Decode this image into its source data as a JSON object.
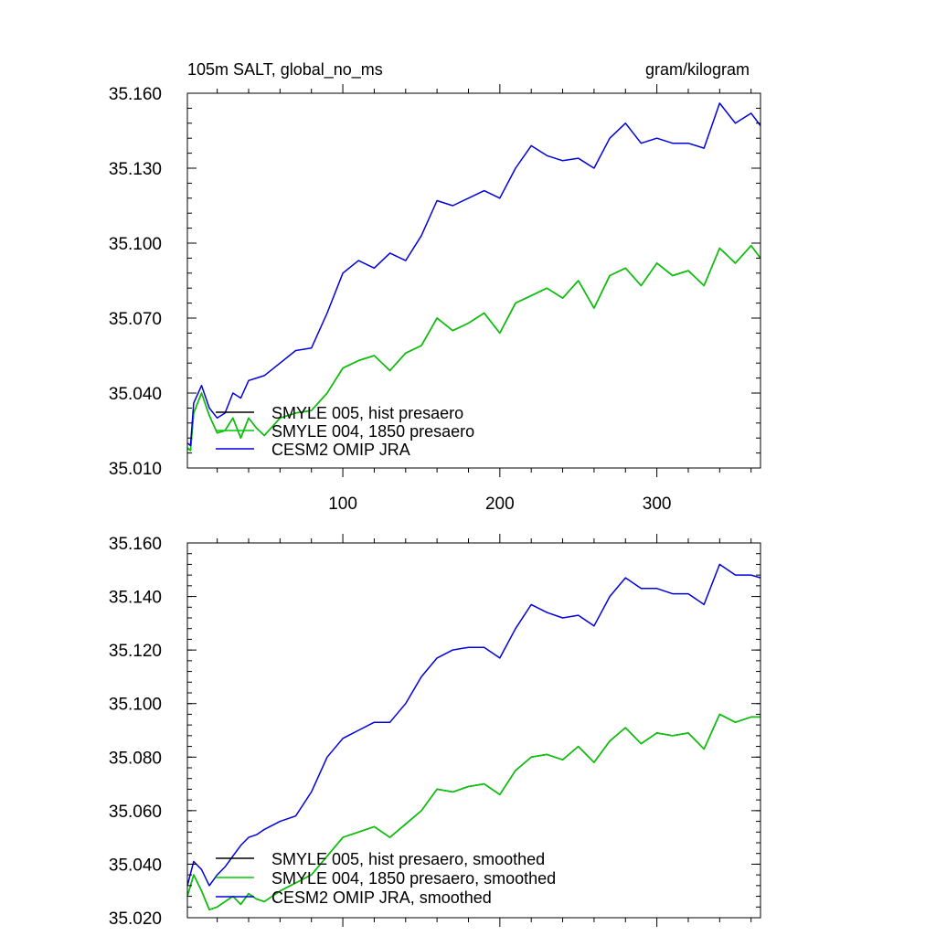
{
  "chart_data": [
    {
      "type": "line",
      "title": "105m SALT, global_no_ms",
      "units": "gram/kilogram",
      "xlim": [
        1,
        366
      ],
      "ylim": [
        35.01,
        35.16
      ],
      "x_ticks": [
        100,
        200,
        300
      ],
      "x_tick_labels": [
        "100",
        "200",
        "300"
      ],
      "y_ticks": [
        35.01,
        35.04,
        35.07,
        35.1,
        35.13,
        35.16
      ],
      "y_tick_labels": [
        "35.010",
        "35.040",
        "35.070",
        "35.100",
        "35.130",
        "35.160"
      ],
      "legend_position": "bottom-left",
      "series": [
        {
          "name": "SMYLE 005, hist presaero",
          "color": "#000000",
          "x": [
            1,
            3,
            5,
            10,
            15,
            20,
            25,
            30,
            35,
            40,
            45,
            50,
            60,
            70,
            80,
            90,
            100,
            110,
            120,
            130,
            140,
            150,
            160,
            170,
            180,
            190,
            200,
            210,
            220,
            230,
            240,
            250,
            260,
            270,
            280,
            290,
            300,
            310,
            320,
            330,
            340,
            350,
            360,
            366
          ],
          "y": [
            35.018,
            35.017,
            35.032,
            35.04,
            35.031,
            35.024,
            35.025,
            35.03,
            35.022,
            35.03,
            35.026,
            35.023,
            35.03,
            35.032,
            35.033,
            35.04,
            35.05,
            35.053,
            35.055,
            35.049,
            35.056,
            35.059,
            35.07,
            35.065,
            35.068,
            35.072,
            35.064,
            35.076,
            35.079,
            35.082,
            35.078,
            35.085,
            35.074,
            35.087,
            35.09,
            35.083,
            35.092,
            35.087,
            35.089,
            35.083,
            35.098,
            35.092,
            35.099,
            35.094
          ]
        },
        {
          "name": "SMYLE 004, 1850 presaero",
          "color": "#00cc00",
          "x": [
            1,
            3,
            5,
            10,
            15,
            20,
            25,
            30,
            35,
            40,
            45,
            50,
            60,
            70,
            80,
            90,
            100,
            110,
            120,
            130,
            140,
            150,
            160,
            170,
            180,
            190,
            200,
            210,
            220,
            230,
            240,
            250,
            260,
            270,
            280,
            290,
            300,
            310,
            320,
            330,
            340,
            350,
            360,
            366
          ],
          "y": [
            35.018,
            35.017,
            35.032,
            35.04,
            35.031,
            35.024,
            35.025,
            35.03,
            35.022,
            35.03,
            35.026,
            35.023,
            35.03,
            35.032,
            35.033,
            35.04,
            35.05,
            35.053,
            35.055,
            35.049,
            35.056,
            35.059,
            35.07,
            35.065,
            35.068,
            35.072,
            35.064,
            35.076,
            35.079,
            35.082,
            35.078,
            35.085,
            35.074,
            35.087,
            35.09,
            35.083,
            35.092,
            35.087,
            35.089,
            35.083,
            35.098,
            35.092,
            35.099,
            35.094
          ]
        },
        {
          "name": "CESM2 OMIP JRA",
          "color": "#0000dd",
          "x": [
            1,
            3,
            5,
            10,
            15,
            20,
            25,
            30,
            35,
            40,
            45,
            50,
            60,
            70,
            80,
            90,
            100,
            110,
            120,
            130,
            140,
            150,
            160,
            170,
            180,
            190,
            200,
            210,
            220,
            230,
            240,
            250,
            260,
            270,
            280,
            290,
            300,
            310,
            320,
            330,
            340,
            350,
            360,
            366
          ],
          "y": [
            35.02,
            35.019,
            35.036,
            35.043,
            35.034,
            35.03,
            35.032,
            35.04,
            35.038,
            35.045,
            35.046,
            35.047,
            35.052,
            35.057,
            35.058,
            35.072,
            35.088,
            35.093,
            35.09,
            35.096,
            35.093,
            35.103,
            35.117,
            35.115,
            35.118,
            35.121,
            35.118,
            35.13,
            35.139,
            35.135,
            35.133,
            35.134,
            35.13,
            35.142,
            35.148,
            35.14,
            35.142,
            35.14,
            35.14,
            35.138,
            35.156,
            35.148,
            35.152,
            35.147
          ]
        }
      ]
    },
    {
      "type": "line",
      "xlim": [
        1,
        366
      ],
      "ylim": [
        35.02,
        35.16
      ],
      "x_ticks": [
        100,
        200,
        300
      ],
      "y_ticks": [
        35.02,
        35.04,
        35.06,
        35.08,
        35.1,
        35.12,
        35.14,
        35.16
      ],
      "y_tick_labels": [
        "35.020",
        "35.040",
        "35.060",
        "35.080",
        "35.100",
        "35.120",
        "35.140",
        "35.160"
      ],
      "legend_position": "bottom-left",
      "series": [
        {
          "name": "SMYLE 005, hist presaero, smoothed",
          "color": "#000000",
          "x": [
            1,
            5,
            10,
            15,
            20,
            25,
            30,
            35,
            40,
            45,
            50,
            60,
            70,
            80,
            90,
            100,
            110,
            120,
            130,
            140,
            150,
            160,
            170,
            180,
            190,
            200,
            210,
            220,
            230,
            240,
            250,
            260,
            270,
            280,
            290,
            300,
            310,
            320,
            330,
            340,
            350,
            360,
            366
          ],
          "y": [
            35.028,
            35.036,
            35.03,
            35.023,
            35.024,
            35.026,
            35.028,
            35.025,
            35.029,
            35.027,
            35.026,
            35.03,
            35.033,
            35.036,
            35.043,
            35.05,
            35.052,
            35.054,
            35.05,
            35.055,
            35.06,
            35.068,
            35.067,
            35.069,
            35.07,
            35.066,
            35.075,
            35.08,
            35.081,
            35.079,
            35.084,
            35.078,
            35.086,
            35.091,
            35.085,
            35.089,
            35.088,
            35.089,
            35.083,
            35.096,
            35.093,
            35.095,
            35.095
          ]
        },
        {
          "name": "SMYLE 004, 1850 presaero, smoothed",
          "color": "#00cc00",
          "x": [
            1,
            5,
            10,
            15,
            20,
            25,
            30,
            35,
            40,
            45,
            50,
            60,
            70,
            80,
            90,
            100,
            110,
            120,
            130,
            140,
            150,
            160,
            170,
            180,
            190,
            200,
            210,
            220,
            230,
            240,
            250,
            260,
            270,
            280,
            290,
            300,
            310,
            320,
            330,
            340,
            350,
            360,
            366
          ],
          "y": [
            35.028,
            35.036,
            35.03,
            35.023,
            35.024,
            35.026,
            35.028,
            35.025,
            35.029,
            35.027,
            35.026,
            35.03,
            35.033,
            35.036,
            35.043,
            35.05,
            35.052,
            35.054,
            35.05,
            35.055,
            35.06,
            35.068,
            35.067,
            35.069,
            35.07,
            35.066,
            35.075,
            35.08,
            35.081,
            35.079,
            35.084,
            35.078,
            35.086,
            35.091,
            35.085,
            35.089,
            35.088,
            35.089,
            35.083,
            35.096,
            35.093,
            35.095,
            35.095
          ]
        },
        {
          "name": "CESM2 OMIP JRA, smoothed",
          "color": "#0000dd",
          "x": [
            1,
            5,
            10,
            15,
            20,
            25,
            30,
            35,
            40,
            45,
            50,
            60,
            70,
            80,
            90,
            100,
            110,
            120,
            130,
            140,
            150,
            160,
            170,
            180,
            190,
            200,
            210,
            220,
            230,
            240,
            250,
            260,
            270,
            280,
            290,
            300,
            310,
            320,
            330,
            340,
            350,
            360,
            366
          ],
          "y": [
            35.032,
            35.041,
            35.038,
            35.032,
            35.036,
            35.039,
            35.043,
            35.047,
            35.05,
            35.051,
            35.053,
            35.056,
            35.058,
            35.067,
            35.08,
            35.087,
            35.09,
            35.093,
            35.093,
            35.1,
            35.11,
            35.117,
            35.12,
            35.121,
            35.121,
            35.117,
            35.128,
            35.137,
            35.134,
            35.132,
            35.133,
            35.129,
            35.14,
            35.147,
            35.143,
            35.143,
            35.141,
            35.141,
            35.137,
            35.152,
            35.148,
            35.148,
            35.147
          ]
        }
      ]
    }
  ]
}
